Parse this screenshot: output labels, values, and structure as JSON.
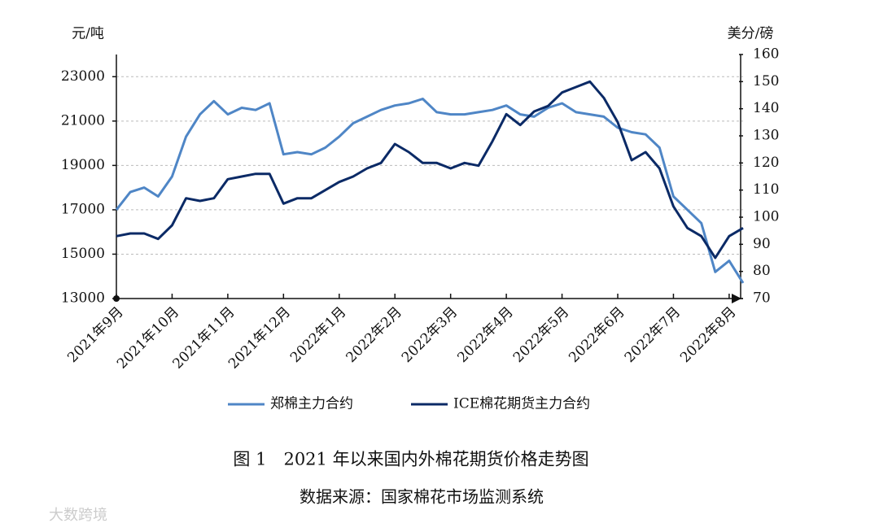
{
  "chart_data": {
    "type": "line",
    "ylabel": "元/吨",
    "y2label": "美分/磅",
    "caption": "图 1　2021 年以来国内外棉花期货价格走势图",
    "source": "数据来源：国家棉花市场监测系统",
    "watermark": "大数跨境",
    "x": [
      0,
      0.25,
      0.5,
      0.75,
      1,
      1.25,
      1.5,
      1.75,
      2,
      2.25,
      2.5,
      2.75,
      3,
      3.25,
      3.5,
      3.75,
      4,
      4.25,
      4.5,
      4.75,
      5,
      5.25,
      5.5,
      5.75,
      6,
      6.25,
      6.5,
      6.75,
      7,
      7.25,
      7.5,
      7.75,
      8,
      8.25,
      8.5,
      8.75,
      9,
      9.25,
      9.5,
      9.75,
      10,
      10.25,
      10.5,
      10.75,
      11,
      11.25
    ],
    "xlim": [
      0,
      11.25
    ],
    "xticks": [
      {
        "value": 0,
        "label": "2021年9月"
      },
      {
        "value": 1,
        "label": "2021年10月"
      },
      {
        "value": 2,
        "label": "2021年11月"
      },
      {
        "value": 3,
        "label": "2021年12月"
      },
      {
        "value": 4,
        "label": "2022年1月"
      },
      {
        "value": 5,
        "label": "2022年2月"
      },
      {
        "value": 6,
        "label": "2022年3月"
      },
      {
        "value": 7,
        "label": "2022年4月"
      },
      {
        "value": 8,
        "label": "2022年5月"
      },
      {
        "value": 9,
        "label": "2022年6月"
      },
      {
        "value": 10,
        "label": "2022年7月"
      },
      {
        "value": 11,
        "label": "2022年8月"
      }
    ],
    "ylim": [
      13000,
      24000
    ],
    "yticks": [
      13000,
      15000,
      17000,
      19000,
      21000,
      23000
    ],
    "y2lim": [
      70,
      160
    ],
    "y2ticks": [
      70,
      80,
      90,
      100,
      110,
      120,
      130,
      140,
      150,
      160
    ],
    "grid": true,
    "legend": "bottom",
    "series": [
      {
        "name": "郑棉主力合约",
        "color": "#4f86c6",
        "values": [
          17000,
          17800,
          18000,
          17600,
          18500,
          20300,
          21300,
          21900,
          21300,
          21600,
          21500,
          21800,
          19500,
          19600,
          19500,
          19800,
          20300,
          20900,
          21200,
          21500,
          21700,
          21800,
          22000,
          21400,
          21300,
          21300,
          21400,
          21500,
          21700,
          21300,
          21200,
          21600,
          21800,
          21400,
          21300,
          21200,
          20700,
          20500,
          20400,
          19800,
          17600,
          17000,
          16400,
          14200,
          14700,
          13700
        ]
      },
      {
        "name": "ICE棉花期货主力合约",
        "color": "#0b2a66",
        "axis": "y2",
        "values": [
          93,
          94,
          94,
          92,
          97,
          107,
          106,
          107,
          114,
          115,
          116,
          116,
          105,
          107,
          107,
          110,
          113,
          115,
          118,
          120,
          127,
          124,
          120,
          120,
          118,
          120,
          119,
          128,
          138,
          134,
          139,
          141,
          146,
          148,
          150,
          144,
          135,
          121,
          124,
          118,
          104,
          96,
          93,
          85,
          93,
          96
        ]
      }
    ]
  }
}
